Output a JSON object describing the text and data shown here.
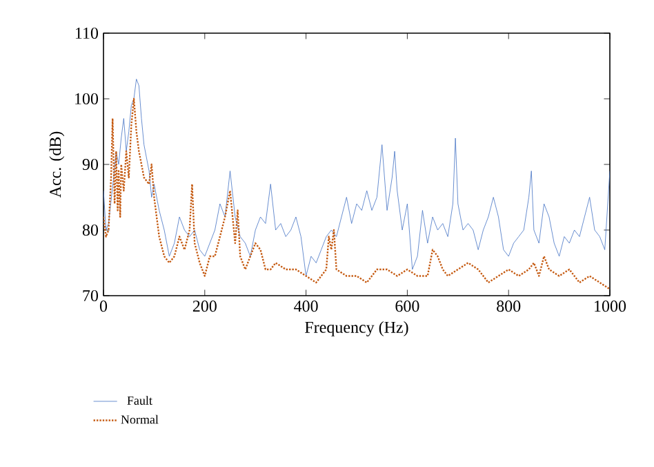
{
  "chart_data": {
    "type": "line",
    "xlabel": "Frequency (Hz)",
    "ylabel": "Acc. (dB)",
    "xlim": [
      0,
      1000
    ],
    "xticks": [
      0,
      200,
      400,
      600,
      800,
      1000
    ],
    "ylim": [
      70,
      110
    ],
    "yticks": [
      70,
      80,
      90,
      100,
      110
    ],
    "grid": false,
    "legend": "bottom",
    "marker": "none",
    "series": [
      {
        "name": "Fault",
        "color": "#4472c4",
        "line_style": "solid",
        "x": [
          0,
          5,
          10,
          20,
          25,
          30,
          35,
          40,
          45,
          50,
          55,
          60,
          65,
          70,
          75,
          80,
          90,
          95,
          100,
          110,
          120,
          130,
          140,
          150,
          160,
          170,
          180,
          190,
          200,
          210,
          220,
          230,
          240,
          250,
          260,
          270,
          280,
          290,
          300,
          310,
          320,
          330,
          340,
          350,
          360,
          370,
          380,
          390,
          400,
          410,
          420,
          430,
          440,
          450,
          460,
          470,
          480,
          490,
          500,
          510,
          520,
          530,
          540,
          550,
          560,
          570,
          575,
          580,
          590,
          600,
          610,
          620,
          630,
          640,
          650,
          660,
          670,
          680,
          690,
          695,
          700,
          710,
          720,
          730,
          740,
          750,
          760,
          770,
          780,
          790,
          800,
          810,
          820,
          830,
          840,
          845,
          850,
          860,
          870,
          880,
          890,
          900,
          910,
          920,
          930,
          940,
          950,
          960,
          970,
          980,
          990,
          1000
        ],
        "values": [
          86,
          80,
          81,
          88,
          92,
          90,
          94,
          97,
          92,
          95,
          99,
          100,
          103,
          102,
          97,
          93,
          89,
          85,
          87,
          83,
          80,
          76,
          78,
          82,
          80,
          79,
          80,
          77,
          76,
          78,
          80,
          84,
          82,
          89,
          82,
          79,
          78,
          76,
          80,
          82,
          81,
          87,
          80,
          81,
          79,
          80,
          82,
          79,
          73,
          76,
          75,
          77,
          79,
          80,
          79,
          82,
          85,
          81,
          84,
          83,
          86,
          83,
          85,
          93,
          83,
          88,
          92,
          86,
          80,
          84,
          74,
          76,
          83,
          78,
          82,
          80,
          81,
          79,
          84,
          94,
          84,
          80,
          81,
          80,
          77,
          80,
          82,
          85,
          82,
          77,
          76,
          78,
          79,
          80,
          85,
          89,
          80,
          78,
          84,
          82,
          78,
          76,
          79,
          78,
          80,
          79,
          82,
          85,
          80,
          79,
          77,
          89
        ]
      },
      {
        "name": "Normal",
        "color": "#c55a11",
        "line_style": "dotted",
        "x": [
          0,
          5,
          10,
          15,
          18,
          22,
          25,
          28,
          30,
          33,
          35,
          40,
          45,
          50,
          55,
          60,
          65,
          70,
          80,
          90,
          95,
          100,
          110,
          120,
          130,
          140,
          150,
          160,
          170,
          175,
          180,
          190,
          200,
          210,
          220,
          230,
          240,
          250,
          260,
          265,
          270,
          280,
          290,
          300,
          310,
          320,
          330,
          340,
          360,
          380,
          400,
          420,
          440,
          445,
          450,
          455,
          460,
          480,
          500,
          520,
          540,
          560,
          580,
          600,
          620,
          640,
          650,
          660,
          670,
          680,
          700,
          720,
          740,
          760,
          780,
          800,
          820,
          840,
          850,
          860,
          870,
          880,
          900,
          920,
          940,
          960,
          980,
          1000
        ],
        "values": [
          82,
          79,
          80,
          88,
          97,
          84,
          92,
          83,
          89,
          82,
          90,
          86,
          92,
          88,
          96,
          100,
          95,
          92,
          88,
          87,
          90,
          85,
          79,
          76,
          75,
          76,
          79,
          77,
          80,
          87,
          78,
          75,
          73,
          76,
          76,
          79,
          82,
          86,
          78,
          83,
          76,
          74,
          76,
          78,
          77,
          74,
          74,
          75,
          74,
          74,
          73,
          72,
          74,
          79,
          77,
          80,
          74,
          73,
          73,
          72,
          74,
          74,
          73,
          74,
          73,
          73,
          77,
          76,
          74,
          73,
          74,
          75,
          74,
          72,
          73,
          74,
          73,
          74,
          75,
          73,
          76,
          74,
          73,
          74,
          72,
          73,
          72,
          71
        ]
      }
    ]
  }
}
